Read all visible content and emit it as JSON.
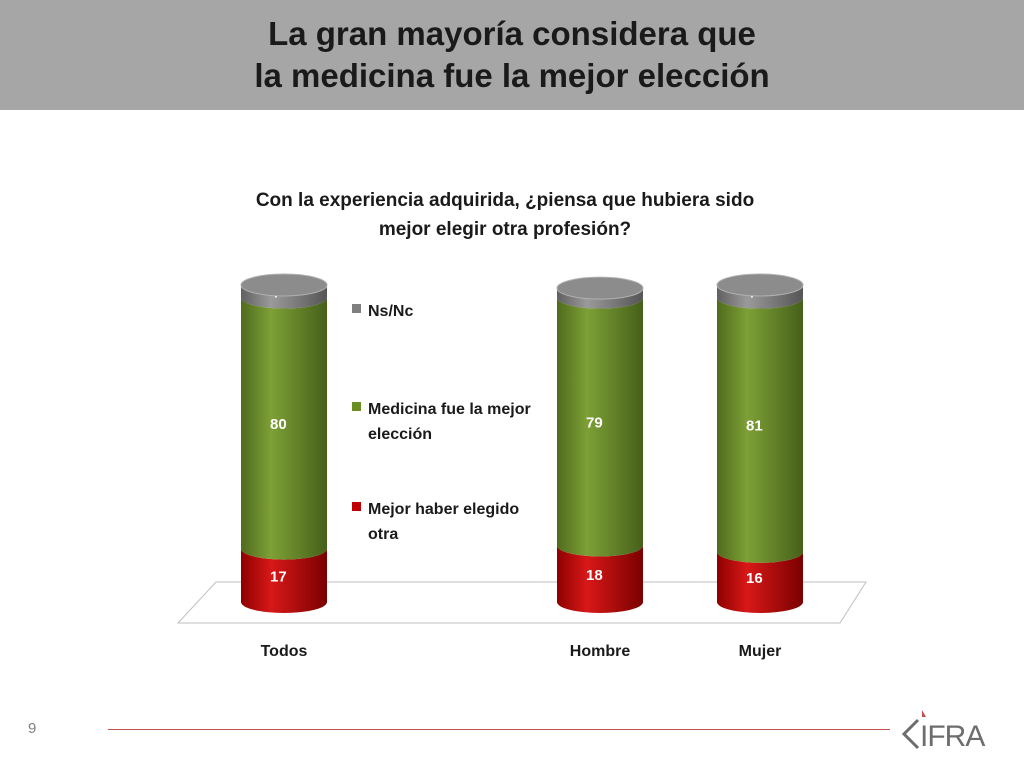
{
  "header": {
    "title_line1": "La gran mayoría considera que",
    "title_line2": "la medicina fue la mejor elección"
  },
  "chart_data": {
    "type": "bar",
    "stacked": true,
    "title_line1": "Con la experiencia adquirida, ¿piensa que hubiera sido",
    "title_line2": "mejor elegir otra profesión?",
    "categories": [
      "Todos",
      "Hombre",
      "Mujer"
    ],
    "series": [
      {
        "name": "Mejor haber elegido otra",
        "values": [
          17,
          18,
          16
        ],
        "color": "#c00000"
      },
      {
        "name": "Medicina fue la mejor elección",
        "values": [
          80,
          79,
          81
        ],
        "color": "#6b8e23"
      },
      {
        "name": "Ns/Nc",
        "values": [
          4,
          3,
          4
        ],
        "color": "#7f7f7f"
      }
    ],
    "legend": [
      {
        "line1": "Ns/Nc",
        "line2": ""
      },
      {
        "line1": "Medicina fue la mejor",
        "line2": "elección"
      },
      {
        "line1": "Mejor haber elegido",
        "line2": "otra"
      }
    ],
    "legend_position": "center",
    "ylim": [
      0,
      101
    ],
    "grid": false,
    "data_labels": true
  },
  "footer": {
    "page_number": "9",
    "logo_text": "CIFRA",
    "accent_color": "#c0504d"
  }
}
